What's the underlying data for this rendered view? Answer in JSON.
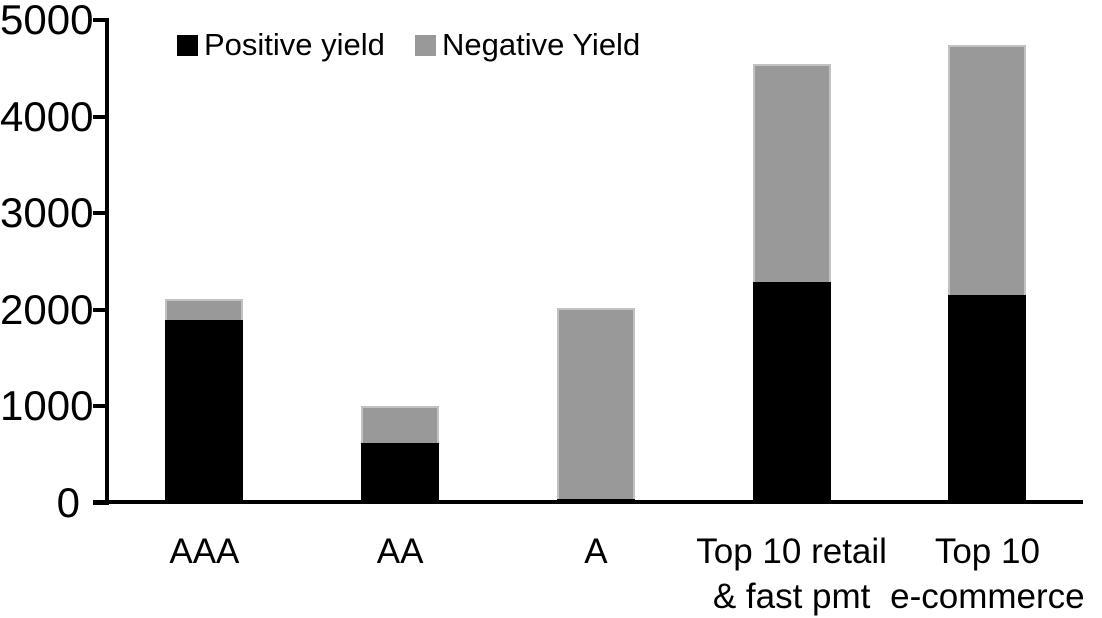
{
  "chart_data": {
    "type": "bar",
    "stacked": true,
    "title": "",
    "xlabel": "",
    "ylabel": "",
    "categories": [
      "AAA",
      "AA",
      "A",
      "Top 10 retail\n& fast pmt",
      "Top 10\ne-commerce"
    ],
    "series": [
      {
        "name": "Positive yield",
        "color": "#000000",
        "values": [
          1890,
          620,
          40,
          2280,
          2150
        ]
      },
      {
        "name": "Negative Yield",
        "color": "#999999",
        "values": [
          220,
          380,
          1980,
          2260,
          2590
        ]
      }
    ],
    "totals": [
      2110,
      1000,
      2020,
      4540,
      4740
    ],
    "ylim": [
      0,
      5000
    ],
    "yticks": [
      0,
      1000,
      2000,
      3000,
      4000,
      5000
    ],
    "grid": false,
    "legend_position": "top",
    "colors": {
      "positive": "#000000",
      "negative": "#999999",
      "axis": "#000000",
      "background": "#ffffff"
    }
  }
}
